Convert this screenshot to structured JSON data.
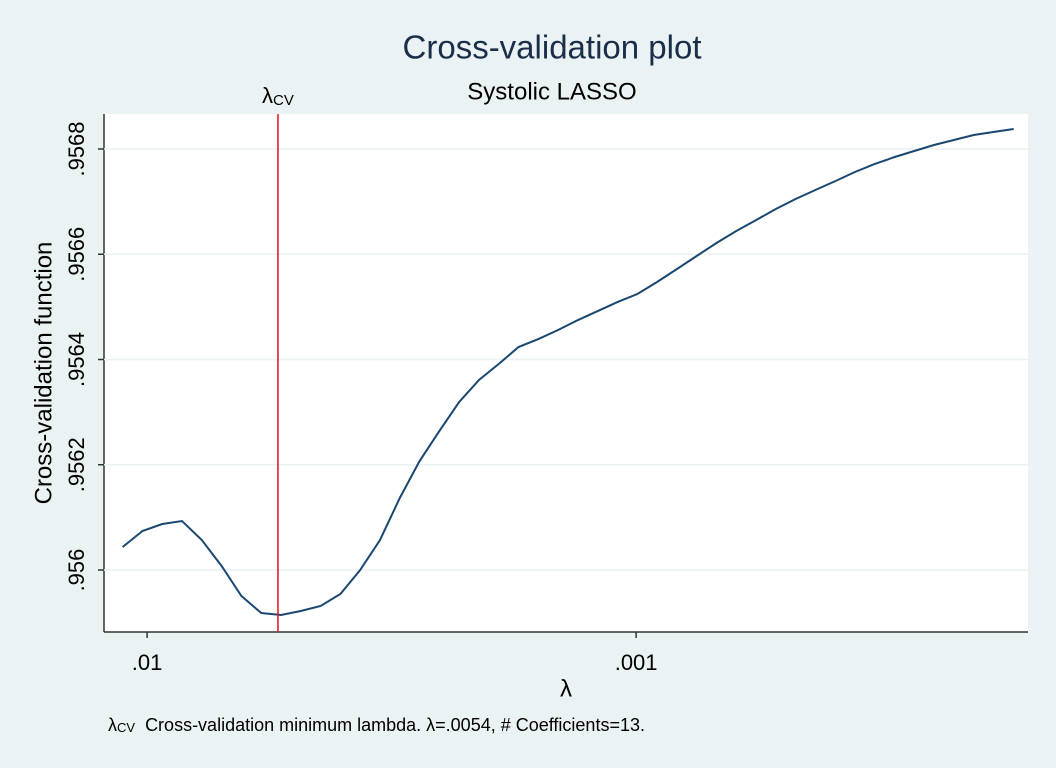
{
  "chart_data": {
    "type": "line",
    "title": "Cross-validation plot",
    "subtitle": "Systolic LASSO",
    "x_label": "λ",
    "y_label": "Cross-validation function",
    "x_scale": "log",
    "xlim": [
      0.01225,
      0.000158
    ],
    "ylim": [
      0.9558822,
      0.9568665
    ],
    "xticks": [
      {
        "value": 0.01,
        "label": ".01"
      },
      {
        "value": 0.001,
        "label": ".001"
      }
    ],
    "yticks": [
      {
        "value": 0.956,
        "label": ".956"
      },
      {
        "value": 0.9562,
        "label": ".9562"
      },
      {
        "value": 0.9564,
        "label": ".9564"
      },
      {
        "value": 0.9566,
        "label": ".9566"
      },
      {
        "value": 0.9568,
        "label": ".9568"
      }
    ],
    "grid": true,
    "xline": {
      "value": 0.0054,
      "label": "λ",
      "label_sub": "CV",
      "color": "#e3101a"
    },
    "note": {
      "symbol": "λ",
      "symbol_sub": "CV",
      "text": "Cross-validation minimum lambda.  λ=.0054, # Coefficients=13."
    },
    "x": [
      0.01122,
      0.010222,
      0.009312,
      0.008484,
      0.007729,
      0.007041,
      0.006414,
      0.005843,
      0.005323,
      0.00485,
      0.004418,
      0.004025,
      0.003667,
      0.00334,
      0.003043,
      0.002772,
      0.002526,
      0.002301,
      0.002096,
      0.00191,
      0.00174,
      0.001585,
      0.001444,
      0.001315,
      0.001198,
      0.001092,
      0.000994,
      0.000906,
      0.000825,
      0.000752,
      0.000685,
      0.000624,
      0.000568,
      0.000518,
      0.000472,
      0.00043,
      0.000391,
      0.000357,
      0.000325,
      0.000296,
      0.00027,
      0.000246,
      0.000224,
      0.000204,
      0.000186,
      0.000169
    ],
    "series": [
      {
        "name": "Cross-validation function",
        "color": "#1a476f",
        "values": [
          0.9560437,
          0.9560741,
          0.9560874,
          0.9560931,
          0.956057,
          0.9560076,
          0.9559506,
          0.9559183,
          0.9559145,
          0.9559221,
          0.9559316,
          0.9559544,
          0.956,
          0.956057,
          0.9561368,
          0.9562071,
          0.9562641,
          0.9563192,
          0.956361,
          0.9563914,
          0.9564237,
          0.9564389,
          0.956456,
          0.956475,
          0.9564921,
          0.9565092,
          0.9565245,
          0.9565473,
          0.956572,
          0.9565967,
          0.9566214,
          0.9566442,
          0.9566651,
          0.956686,
          0.956705,
          0.9567221,
          0.9567392,
          0.9567563,
          0.9567715,
          0.9567848,
          0.9567962,
          0.9568076,
          0.9568171,
          0.9568266,
          0.9568323,
          0.956838
        ]
      }
    ]
  }
}
